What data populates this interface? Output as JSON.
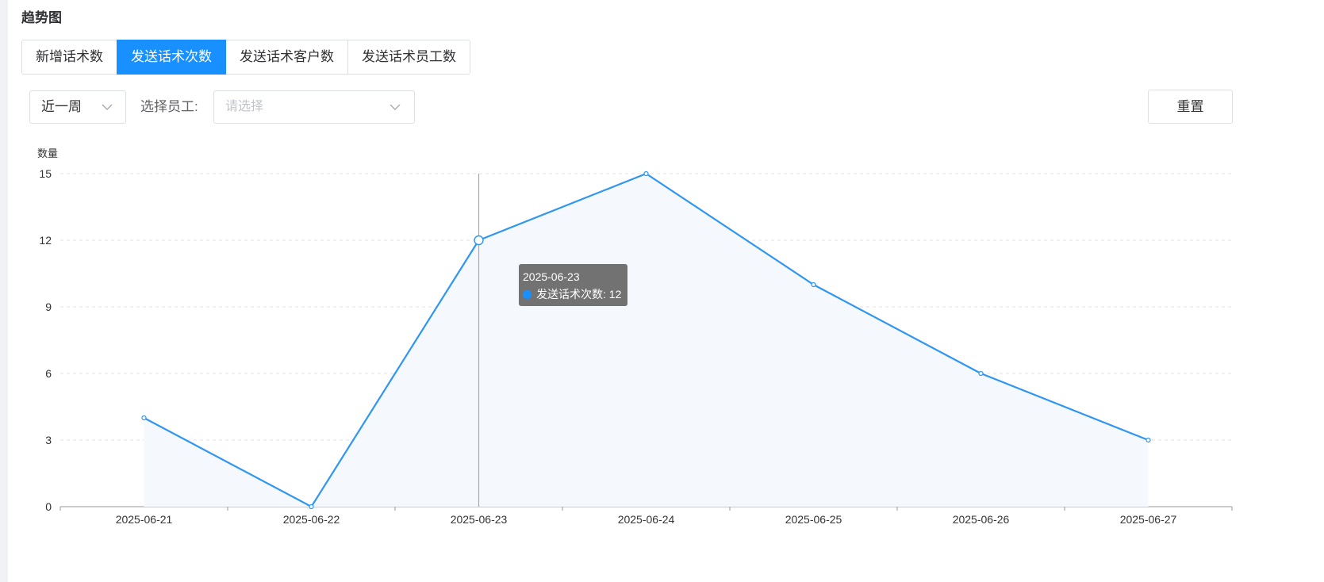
{
  "section_title": "趋势图",
  "tabs": [
    {
      "label": "新增话术数",
      "active": false
    },
    {
      "label": "发送话术次数",
      "active": true
    },
    {
      "label": "发送话术客户数",
      "active": false
    },
    {
      "label": "发送话术员工数",
      "active": false
    }
  ],
  "filters": {
    "period_value": "近一周",
    "employee_label": "选择员工:",
    "employee_placeholder": "请选择",
    "reset_label": "重置"
  },
  "colors": {
    "accent": "#1890ff",
    "line": "#2f96f3",
    "area": "#f5f9fd",
    "grid": "#e0e0e0"
  },
  "chart_data": {
    "type": "line",
    "ylabel": "数量",
    "categories": [
      "2025-06-21",
      "2025-06-22",
      "2025-06-23",
      "2025-06-24",
      "2025-06-25",
      "2025-06-26",
      "2025-06-27"
    ],
    "series": [
      {
        "name": "发送话术次数",
        "values": [
          4,
          0,
          12,
          15,
          10,
          6,
          3
        ]
      }
    ],
    "ylim": [
      0,
      15
    ],
    "yticks": [
      0,
      3,
      6,
      9,
      12,
      15
    ],
    "grid": true,
    "area_fill": true,
    "highlighted_index": 2
  },
  "tooltip": {
    "date": "2025-06-23",
    "series_label": "发送话术次数: 12"
  }
}
